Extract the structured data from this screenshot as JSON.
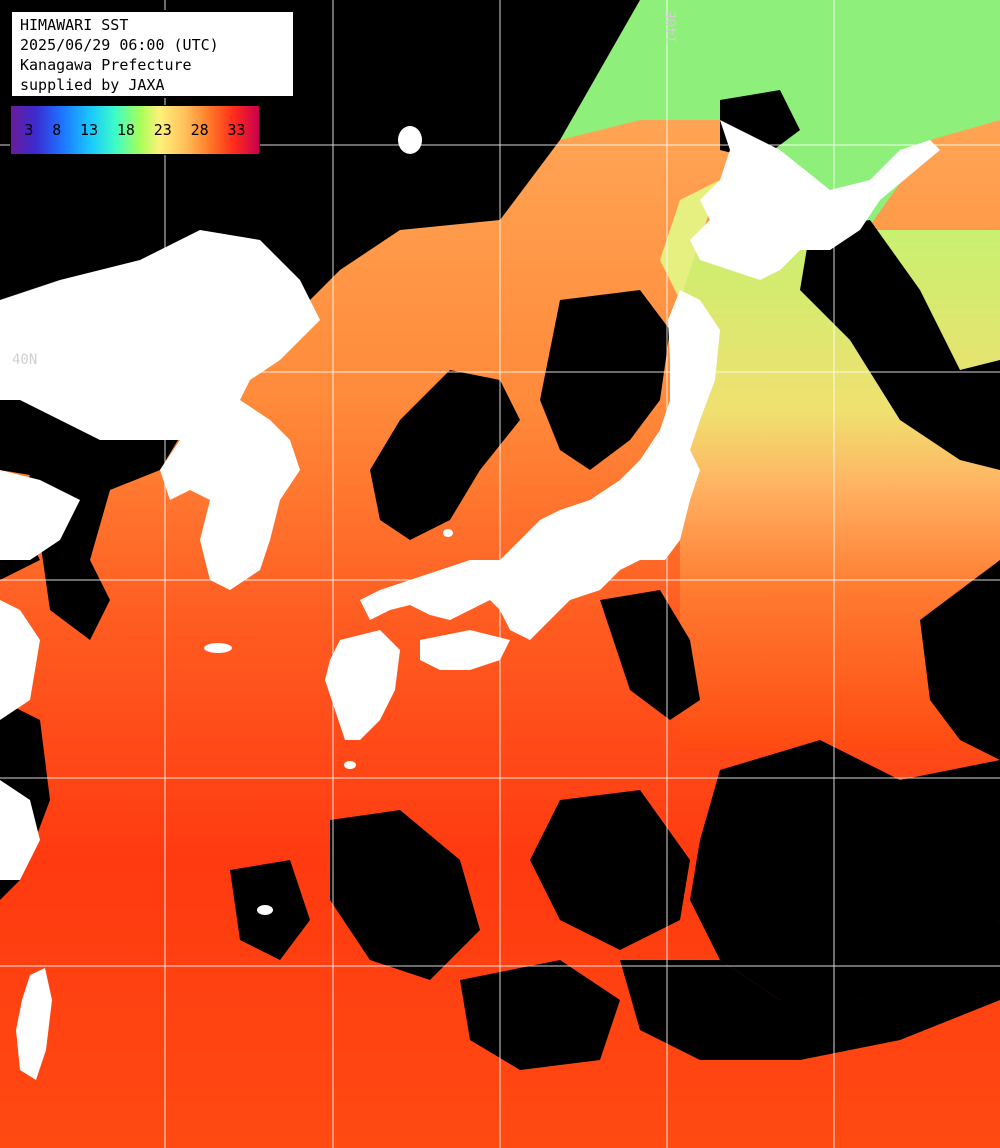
{
  "title": {
    "line1": "HIMAWARI SST",
    "line2": "2025/06/29 06:00 (UTC)",
    "line3": "Kanagawa Prefecture",
    "line4": "supplied by JAXA"
  },
  "legend": {
    "ticks": [
      "3",
      "8",
      "13",
      "18",
      "23",
      "28",
      "33"
    ]
  },
  "graticule": {
    "lat_label": "40N",
    "lon_label": "140E"
  },
  "colors": {
    "land": "#ffffff",
    "cloud_mask": "#000000",
    "grid": "#ffffff",
    "warm_sea": "#ff3a10",
    "mid_sea": "#ff9a40",
    "cool_sea": "#a8f070"
  }
}
